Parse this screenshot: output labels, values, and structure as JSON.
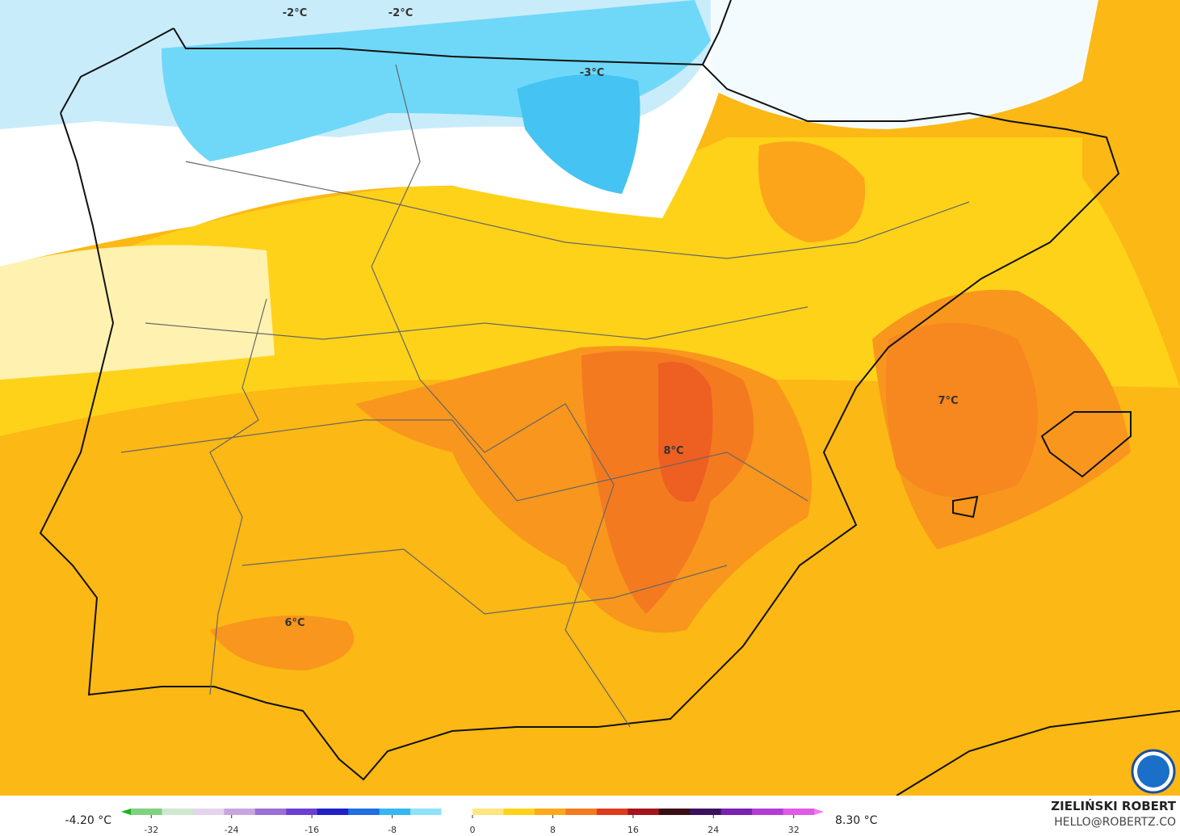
{
  "map": {
    "contour_labels": [
      "-2°C",
      "-2°C",
      "-3°C",
      "8°C",
      "7°C",
      "6°C"
    ]
  },
  "legend": {
    "min_label": "-4.20 °C",
    "max_label": "8.30 °C",
    "lim": [
      -35,
      35
    ],
    "ticks": [
      -32,
      -24,
      -16,
      -8,
      0,
      8,
      16,
      24,
      32
    ],
    "colors": [
      "#1fb51f",
      "#7fd27f",
      "#cfe8cf",
      "#e4d4ec",
      "#c7a6e0",
      "#9b6fd6",
      "#6a3fd0",
      "#2020c8",
      "#1f6fe0",
      "#35b7f2",
      "#8fe2fb",
      "#ffffff",
      "#ffe680",
      "#ffd21a",
      "#ffa91a",
      "#f47a20",
      "#e03a1c",
      "#a5141c",
      "#3a0f14",
      "#3c1060",
      "#7b20b0",
      "#b43cd6",
      "#e05ae6",
      "#f07cf0"
    ]
  },
  "credit": {
    "author": "ZIELIŃSKI ROBERT",
    "contact": "HELLO@ROBERTZ.CO"
  }
}
